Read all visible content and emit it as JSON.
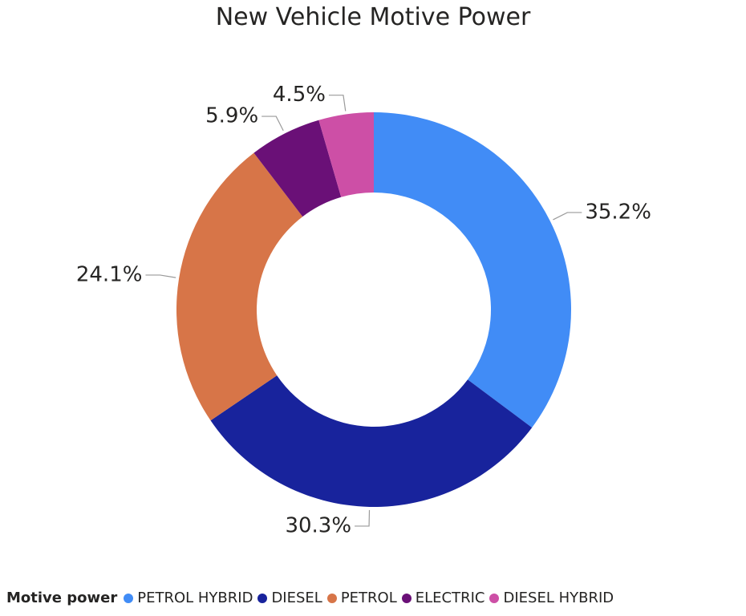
{
  "chart_data": {
    "type": "pie",
    "title": "New Vehicle Motive Power",
    "donut": true,
    "categories": [
      "PETROL HYBRID",
      "DIESEL",
      "PETROL",
      "ELECTRIC",
      "DIESEL HYBRID"
    ],
    "values": [
      35.2,
      30.3,
      24.1,
      5.9,
      4.5
    ],
    "labels": [
      "35.2%",
      "30.3%",
      "24.1%",
      "5.9%",
      "4.5%"
    ],
    "colors": [
      "#418CF6",
      "#18239C",
      "#D77548",
      "#6A1077",
      "#CD4FA6"
    ],
    "legend": {
      "title": "Motive power",
      "placement": "bottom-left"
    }
  }
}
